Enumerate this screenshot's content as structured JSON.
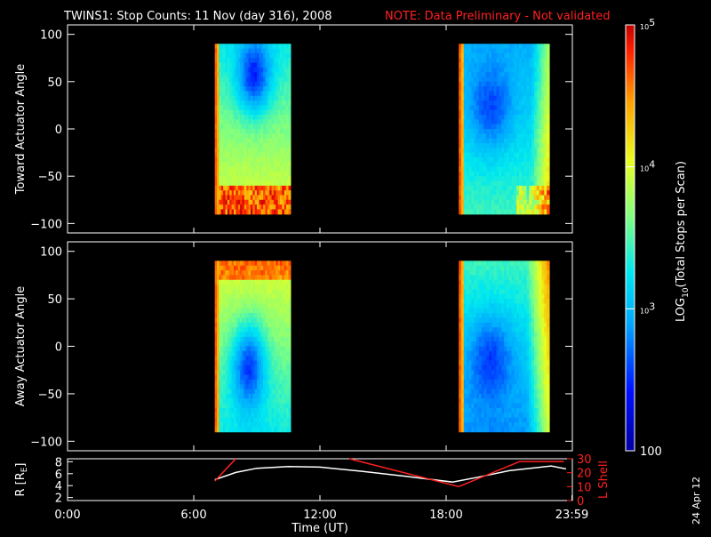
{
  "title": {
    "main": "TWINS1: Stop Counts: 11 Nov (day 316), 2008",
    "note": "NOTE: Data Preliminary - Not validated",
    "note_color": "#ff2020"
  },
  "date_stamp": "24 Apr 12",
  "chart_data": [
    {
      "type": "heatmap",
      "ylabel": "Toward Actuator Angle",
      "ylim": [
        -110,
        110
      ],
      "yticks": [
        "100",
        "50",
        "0",
        "−50",
        "−100"
      ],
      "ytick_values": [
        100,
        50,
        0,
        -50,
        -100
      ],
      "y_range_data": [
        -90,
        90
      ],
      "intervals_hours": [
        [
          7.0,
          10.6
        ],
        [
          18.6,
          22.9
        ]
      ],
      "profile": "toward"
    },
    {
      "type": "heatmap",
      "ylabel": "Away Actuator Angle",
      "ylim": [
        -110,
        110
      ],
      "yticks": [
        "100",
        "50",
        "0",
        "−50",
        "−100"
      ],
      "ytick_values": [
        100,
        50,
        0,
        -50,
        -100
      ],
      "y_range_data": [
        -90,
        90
      ],
      "intervals_hours": [
        [
          7.0,
          10.6
        ],
        [
          18.6,
          22.9
        ]
      ],
      "profile": "away"
    },
    {
      "type": "line",
      "ylabel": "R [R",
      "ylabel_sub": "E",
      "ylabel_end": "]",
      "ylim": [
        1.5,
        8.5
      ],
      "yticks": [
        "8",
        "6",
        "4",
        "2"
      ],
      "ytick_values": [
        8,
        6,
        4,
        2
      ],
      "y2label": "L Shell",
      "y2lim": [
        0,
        30
      ],
      "y2ticks": [
        "30",
        "20",
        "10",
        "0"
      ],
      "y2tick_values": [
        30,
        20,
        10,
        0
      ],
      "xlabel": "Time (UT)",
      "xticks": [
        "0:00",
        "6:00",
        "12:00",
        "18:00",
        "23:59"
      ],
      "xtick_values": [
        0,
        6,
        12,
        18,
        23.98
      ],
      "series": [
        {
          "color": "#ffffff",
          "x": [
            7.0,
            8.0,
            9.0,
            10.5,
            12.0,
            14.0,
            16.0,
            18.3,
            19.5,
            21.0,
            23.0,
            23.7
          ],
          "y": [
            5.0,
            6.2,
            6.9,
            7.2,
            7.1,
            6.4,
            5.6,
            4.6,
            5.4,
            6.5,
            7.3,
            6.8
          ]
        },
        {
          "color": "#ff2020",
          "axis": "right",
          "segments": [
            {
              "x": [
                7.0,
                8.0
              ],
              "y": [
                14,
                30
              ]
            },
            {
              "x": [
                13.4,
                18.6
              ],
              "y": [
                30,
                10
              ]
            },
            {
              "x": [
                18.6,
                21.5,
                23.6
              ],
              "y": [
                10,
                28,
                28
              ]
            }
          ]
        }
      ]
    }
  ],
  "colorbar": {
    "label": "LOG",
    "label_sub": "10",
    "label_end": "(Total Stops per Scan)",
    "ticks": [
      {
        "base": "10",
        "exp": "5",
        "value": 5
      },
      {
        "base": "10",
        "exp": "4",
        "value": 4
      },
      {
        "base": "10",
        "exp": "3",
        "value": 3
      },
      {
        "base": "100",
        "exp": "",
        "value": 2
      }
    ],
    "range": [
      2,
      5
    ]
  }
}
